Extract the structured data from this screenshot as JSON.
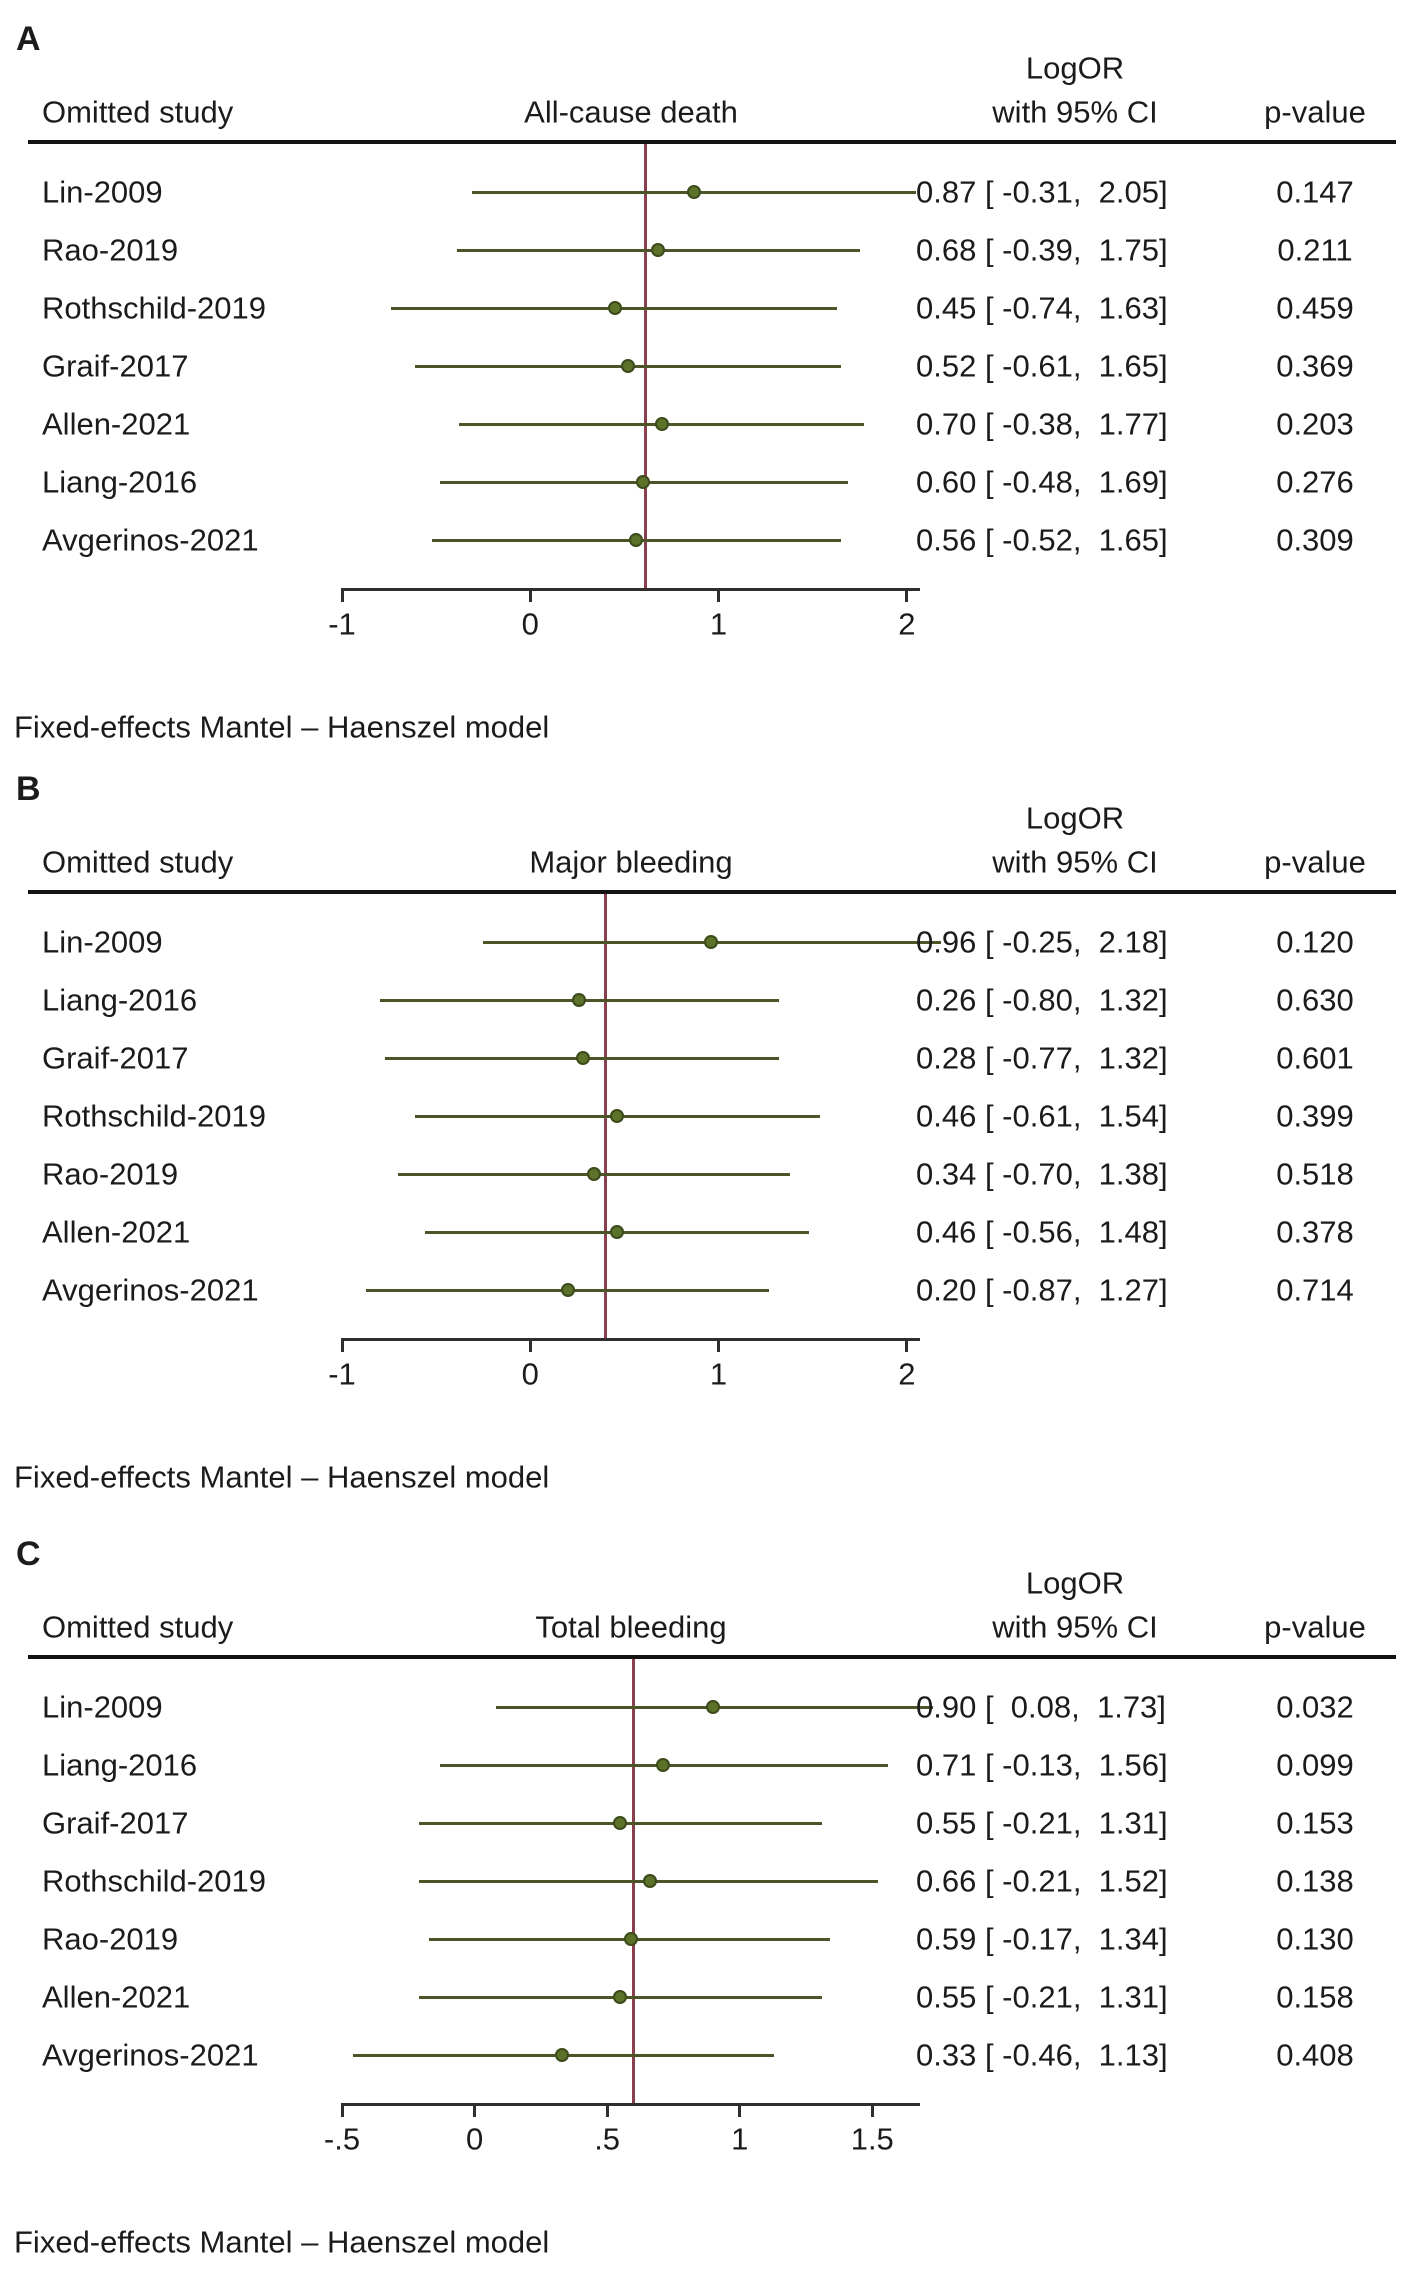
{
  "shared": {
    "columns": {
      "study": "Omitted study",
      "est1": "LogOR",
      "est2": "with 95% CI",
      "p": "p-value"
    }
  },
  "colors": {
    "ci_line": "#4c5527",
    "marker_fill": "#5c7229",
    "marker_edge": "#3c4a1c",
    "reference_line": "#8b3e4e",
    "axis": "#2e2e2e",
    "header_rule": "#141414",
    "text": "#1b1b1b",
    "background": "#ffffff"
  },
  "chart_data": [
    {
      "type": "forest",
      "panel_label": "A",
      "outcome": "All-cause death",
      "note": "Fixed-effects Mantel – Haenszel model",
      "xlabel": "",
      "ylabel": "Omitted study",
      "tick_values": [
        -1,
        0,
        1,
        2
      ],
      "tick_labels": [
        "-1",
        "0",
        "1",
        "2"
      ],
      "axis_range": [
        -1,
        2.07
      ],
      "ref_line": 0.61,
      "rows": [
        {
          "study": "Lin-2009",
          "est": 0.87,
          "lo": -0.31,
          "hi": 2.05,
          "ci_text": "0.87 [ -0.31,  2.05]",
          "p_text": "0.147"
        },
        {
          "study": "Rao-2019",
          "est": 0.68,
          "lo": -0.39,
          "hi": 1.75,
          "ci_text": "0.68 [ -0.39,  1.75]",
          "p_text": "0.211"
        },
        {
          "study": "Rothschild-2019",
          "est": 0.45,
          "lo": -0.74,
          "hi": 1.63,
          "ci_text": "0.45 [ -0.74,  1.63]",
          "p_text": "0.459"
        },
        {
          "study": "Graif-2017",
          "est": 0.52,
          "lo": -0.61,
          "hi": 1.65,
          "ci_text": "0.52 [ -0.61,  1.65]",
          "p_text": "0.369"
        },
        {
          "study": "Allen-2021",
          "est": 0.7,
          "lo": -0.38,
          "hi": 1.77,
          "ci_text": "0.70 [ -0.38,  1.77]",
          "p_text": "0.203"
        },
        {
          "study": "Liang-2016",
          "est": 0.6,
          "lo": -0.48,
          "hi": 1.69,
          "ci_text": "0.60 [ -0.48,  1.69]",
          "p_text": "0.276"
        },
        {
          "study": "Avgerinos-2021",
          "est": 0.56,
          "lo": -0.52,
          "hi": 1.65,
          "ci_text": "0.56 [ -0.52,  1.65]",
          "p_text": "0.309"
        }
      ]
    },
    {
      "type": "forest",
      "panel_label": "B",
      "outcome": "Major bleeding",
      "note": "Fixed-effects Mantel – Haenszel model",
      "xlabel": "",
      "ylabel": "Omitted study",
      "tick_values": [
        -1,
        0,
        1,
        2
      ],
      "tick_labels": [
        "-1",
        "0",
        "1",
        "2"
      ],
      "axis_range": [
        -1,
        2.07
      ],
      "ref_line": 0.4,
      "rows": [
        {
          "study": "Lin-2009",
          "est": 0.96,
          "lo": -0.25,
          "hi": 2.18,
          "ci_text": "0.96 [ -0.25,  2.18]",
          "p_text": "0.120"
        },
        {
          "study": "Liang-2016",
          "est": 0.26,
          "lo": -0.8,
          "hi": 1.32,
          "ci_text": "0.26 [ -0.80,  1.32]",
          "p_text": "0.630"
        },
        {
          "study": "Graif-2017",
          "est": 0.28,
          "lo": -0.77,
          "hi": 1.32,
          "ci_text": "0.28 [ -0.77,  1.32]",
          "p_text": "0.601"
        },
        {
          "study": "Rothschild-2019",
          "est": 0.46,
          "lo": -0.61,
          "hi": 1.54,
          "ci_text": "0.46 [ -0.61,  1.54]",
          "p_text": "0.399"
        },
        {
          "study": "Rao-2019",
          "est": 0.34,
          "lo": -0.7,
          "hi": 1.38,
          "ci_text": "0.34 [ -0.70,  1.38]",
          "p_text": "0.518"
        },
        {
          "study": "Allen-2021",
          "est": 0.46,
          "lo": -0.56,
          "hi": 1.48,
          "ci_text": "0.46 [ -0.56,  1.48]",
          "p_text": "0.378"
        },
        {
          "study": "Avgerinos-2021",
          "est": 0.2,
          "lo": -0.87,
          "hi": 1.27,
          "ci_text": "0.20 [ -0.87,  1.27]",
          "p_text": "0.714"
        }
      ]
    },
    {
      "type": "forest",
      "panel_label": "C",
      "outcome": "Total bleeding",
      "note": "Fixed-effects Mantel – Haenszel model",
      "xlabel": "",
      "ylabel": "Omitted study",
      "tick_values": [
        -0.5,
        0,
        0.5,
        1,
        1.5
      ],
      "tick_labels": [
        "-.5",
        "0",
        ".5",
        "1",
        "1.5"
      ],
      "axis_range": [
        -0.5,
        1.68
      ],
      "ref_line": 0.6,
      "rows": [
        {
          "study": "Lin-2009",
          "est": 0.9,
          "lo": 0.08,
          "hi": 1.73,
          "ci_text": "0.90 [  0.08,  1.73]",
          "p_text": "0.032"
        },
        {
          "study": "Liang-2016",
          "est": 0.71,
          "lo": -0.13,
          "hi": 1.56,
          "ci_text": "0.71 [ -0.13,  1.56]",
          "p_text": "0.099"
        },
        {
          "study": "Graif-2017",
          "est": 0.55,
          "lo": -0.21,
          "hi": 1.31,
          "ci_text": "0.55 [ -0.21,  1.31]",
          "p_text": "0.153"
        },
        {
          "study": "Rothschild-2019",
          "est": 0.66,
          "lo": -0.21,
          "hi": 1.52,
          "ci_text": "0.66 [ -0.21,  1.52]",
          "p_text": "0.138"
        },
        {
          "study": "Rao-2019",
          "est": 0.59,
          "lo": -0.17,
          "hi": 1.34,
          "ci_text": "0.59 [ -0.17,  1.34]",
          "p_text": "0.130"
        },
        {
          "study": "Allen-2021",
          "est": 0.55,
          "lo": -0.21,
          "hi": 1.31,
          "ci_text": "0.55 [ -0.21,  1.31]",
          "p_text": "0.158"
        },
        {
          "study": "Avgerinos-2021",
          "est": 0.33,
          "lo": -0.46,
          "hi": 1.13,
          "ci_text": "0.33 [ -0.46,  1.13]",
          "p_text": "0.408"
        }
      ]
    }
  ]
}
